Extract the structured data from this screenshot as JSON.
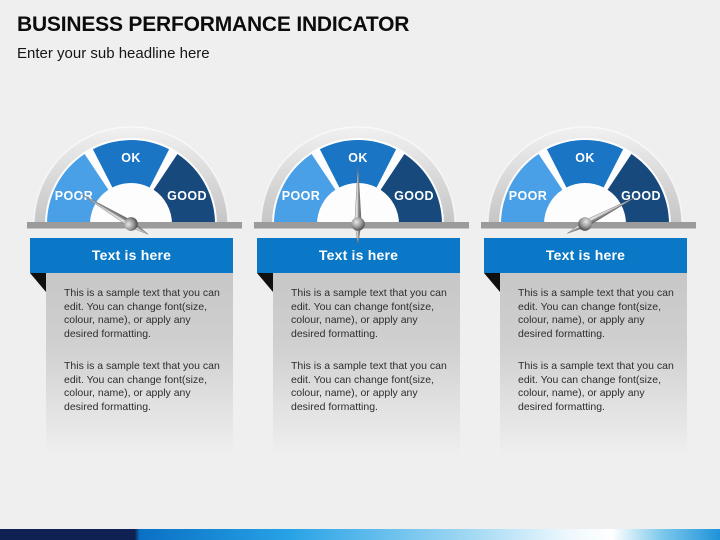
{
  "slide": {
    "title": "BUSINESS PERFORMANCE INDICATOR",
    "subtitle": "Enter your sub headline here"
  },
  "gauges": [
    {
      "segments": {
        "poor": "POOR",
        "ok": "OK",
        "good": "GOOD"
      },
      "pointing_at": "POOR",
      "needle_rotation": -59
    },
    {
      "segments": {
        "poor": "POOR",
        "ok": "OK",
        "good": "GOOD"
      },
      "pointing_at": "OK",
      "needle_rotation": 0
    },
    {
      "segments": {
        "poor": "POOR",
        "ok": "OK",
        "good": "GOOD"
      },
      "pointing_at": "GOOD",
      "needle_rotation": 62
    }
  ],
  "cards": [
    {
      "header": "Text is here",
      "body": [
        "This is a sample text that you can\nedit. You can change font(size,\ncolour, name), or apply any\ndesired formatting.",
        "This is a sample text that you can\nedit. You can change font(size,\ncolour, name), or apply any\ndesired formatting."
      ]
    },
    {
      "header": "Text is here",
      "body": [
        "This is a sample text that you can\nedit. You can change font(size,\ncolour, name), or apply any\ndesired formatting.",
        "This is a sample text that you can\nedit. You can change font(size,\ncolour, name), or apply any\ndesired formatting."
      ]
    },
    {
      "header": "Text is here",
      "body": [
        "This is a sample text that you can\nedit. You can change font(size,\ncolour, name), or apply any\ndesired formatting.",
        "This is a sample text that you can\nedit. You can change font(size,\ncolour, name), or apply any\ndesired formatting."
      ]
    }
  ],
  "colors": {
    "segment_poor": "#4aa0e7",
    "segment_ok": "#1a75c5",
    "segment_good": "#17497d",
    "header_blue": "#0a78c6",
    "baseline_gray": "#9b9b9b",
    "accent_navy": "#0e2152",
    "accent_blue": "#1f93d8"
  }
}
